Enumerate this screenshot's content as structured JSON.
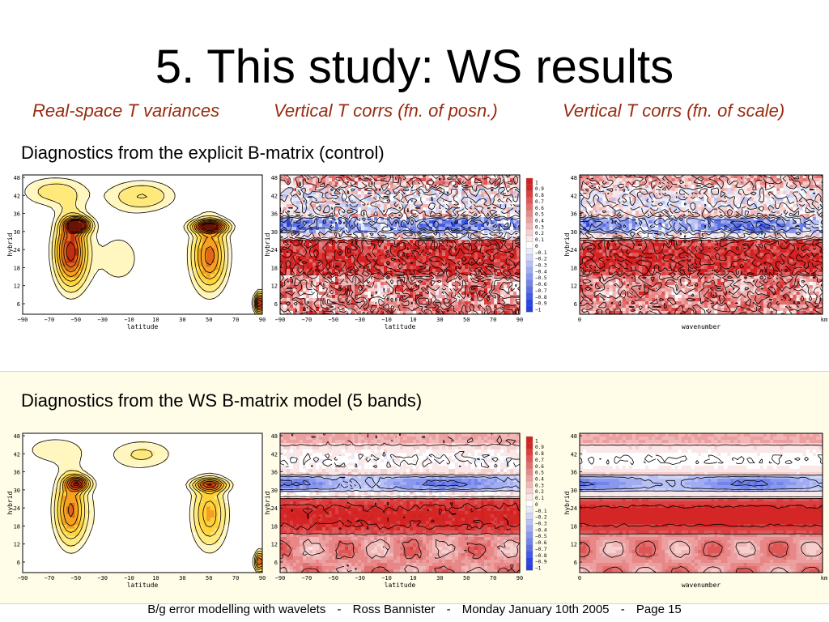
{
  "slide": {
    "title": "5. This study: WS results",
    "column_headers": [
      "Real-space T variances",
      "Vertical T corrs (fn. of posn.)",
      "Vertical T corrs (fn. of scale)"
    ],
    "rows": [
      {
        "label": "Diagnostics from the explicit B-matrix (control)"
      },
      {
        "label": "Diagnostics from the WS B-matrix model (5 bands)"
      }
    ]
  },
  "axes": {
    "y_label": "hybrid",
    "y_ticks": [
      "48",
      "42",
      "36",
      "30",
      "24",
      "18",
      "12",
      "6"
    ],
    "lat_ticks": [
      "−90",
      "−70",
      "−50",
      "−30",
      "−10",
      "10",
      "30",
      "50",
      "70",
      "90"
    ],
    "lat_label": "latitude",
    "wn_label": "wavenumber",
    "wn_ticks": [
      "0",
      "km"
    ],
    "colorbar_ticks": [
      "1",
      "0.9",
      "0.8",
      "0.7",
      "0.6",
      "0.5",
      "0.4",
      "0.3",
      "0.2",
      "0.1",
      "0",
      "−0.1",
      "−0.2",
      "−0.3",
      "−0.4",
      "−0.5",
      "−0.6",
      "−0.7",
      "−0.8",
      "−0.9",
      "−1"
    ]
  },
  "colors": {
    "subhead": "#9a2b10",
    "variance_fill": [
      "#ffffff",
      "#fff6c0",
      "#ffe97a",
      "#ffd23a",
      "#f5a020",
      "#e0661a",
      "#c03010",
      "#6a1205"
    ],
    "corr_pos": "#d42020",
    "corr_neg": "#2540e0",
    "band": "#fffde8"
  },
  "footer": {
    "title": "B/g error modelling with wavelets",
    "sep": "-",
    "author": "Ross Bannister",
    "date": "Monday January 10th 2005",
    "page": "Page  15"
  }
}
